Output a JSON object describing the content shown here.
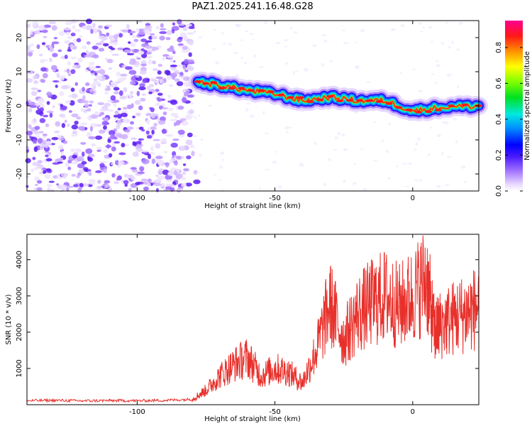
{
  "chart_data": [
    {
      "type": "heatmap",
      "title": "PAZ1.2025.241.16.48.G28",
      "xlabel": "Height of straight line (km)",
      "ylabel": "Frequency (Hz)",
      "xlim": [
        -140,
        24
      ],
      "ylim": [
        -25,
        25
      ],
      "xticks": [
        -100,
        -50,
        0
      ],
      "xtick_labels": [
        "-100",
        "-50",
        "0"
      ],
      "yticks": [
        -20,
        -10,
        0,
        10,
        20
      ],
      "ytick_labels": [
        "-20",
        "-10",
        "0",
        "10",
        "20"
      ],
      "noise_region": {
        "x_from": -140,
        "x_to": -80,
        "freq_from": -25,
        "freq_to": 25
      },
      "ridge": {
        "x": [
          -78,
          -70,
          -60,
          -50,
          -40,
          -30,
          -20,
          -10,
          0,
          10,
          24
        ],
        "freq": [
          7,
          6,
          4.5,
          3.5,
          1.5,
          2.5,
          1.5,
          1.5,
          -1.5,
          -0.5,
          0
        ]
      },
      "colorbar": {
        "label": "Normalized spectral amplitude",
        "range": [
          0.0,
          0.95
        ],
        "ticks": [
          0.0,
          0.2,
          0.4,
          0.6,
          0.8
        ],
        "tick_labels": [
          "0.0",
          "0.2",
          "0.4",
          "0.6",
          "0.8"
        ]
      }
    },
    {
      "type": "line",
      "xlabel": "Height of straight line (km)",
      "ylabel": "SNR (10 * v/v)",
      "xlim": [
        -140,
        24
      ],
      "ylim": [
        0,
        4700
      ],
      "xticks": [
        -100,
        -50,
        0
      ],
      "xtick_labels": [
        "-100",
        "-50",
        "0"
      ],
      "yticks": [
        1000,
        2000,
        3000,
        4000
      ],
      "ytick_labels": [
        "1000",
        "2000",
        "3000",
        "4000"
      ],
      "color": "#e8302b",
      "x": [
        -140,
        -130,
        -120,
        -110,
        -100,
        -90,
        -80,
        -75,
        -70,
        -65,
        -60,
        -55,
        -50,
        -45,
        -40,
        -35,
        -30,
        -25,
        -20,
        -15,
        -10,
        -5,
        0,
        5,
        8,
        10,
        15,
        20,
        24
      ],
      "y": [
        110,
        120,
        105,
        115,
        110,
        120,
        150,
        400,
        800,
        1100,
        1300,
        800,
        1000,
        900,
        600,
        1500,
        2800,
        1800,
        2500,
        2800,
        3000,
        2700,
        3000,
        3500,
        2000,
        2200,
        2400,
        2550,
        2700
      ]
    }
  ]
}
